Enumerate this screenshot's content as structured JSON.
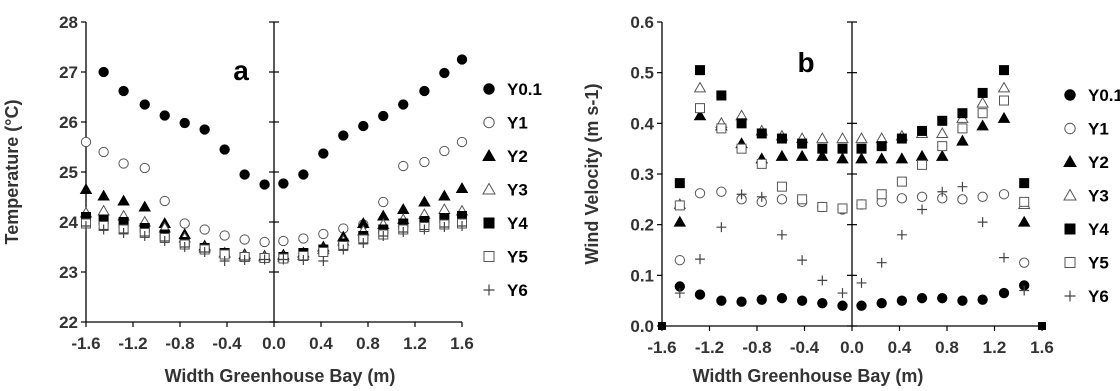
{
  "chart_data": [
    {
      "type": "scatter",
      "panel_label": "a",
      "xlabel": "Width Greenhouse Bay (m)",
      "ylabel": "Temperature (°C)",
      "xlim": [
        -1.6,
        1.6
      ],
      "ylim": [
        22,
        28
      ],
      "xticks": [
        "-1.6",
        "-1.2",
        "-0.8",
        "-0.4",
        "0.0",
        "0.4",
        "0.8",
        "1.2",
        "1.6"
      ],
      "yticks": [
        "22",
        "23",
        "24",
        "25",
        "26",
        "27",
        "28"
      ],
      "x": [
        -1.6,
        -1.45,
        -1.28,
        -1.1,
        -0.93,
        -0.76,
        -0.59,
        -0.42,
        -0.25,
        -0.08,
        0.08,
        0.25,
        0.42,
        0.59,
        0.76,
        0.93,
        1.1,
        1.28,
        1.45,
        1.6
      ],
      "series": [
        {
          "name": "Y0.1",
          "marker": "filled-circle",
          "values": [
            null,
            27.0,
            26.62,
            26.35,
            26.13,
            25.98,
            25.85,
            25.45,
            24.95,
            24.75,
            24.77,
            24.95,
            25.37,
            25.73,
            25.92,
            26.12,
            26.35,
            26.62,
            26.98,
            27.25
          ]
        },
        {
          "name": "Y1",
          "marker": "open-circle",
          "values": [
            25.6,
            25.4,
            25.17,
            25.08,
            24.42,
            23.97,
            23.85,
            23.73,
            23.65,
            23.6,
            23.62,
            23.67,
            23.76,
            23.87,
            23.95,
            24.4,
            25.12,
            25.2,
            25.42,
            25.6
          ]
        },
        {
          "name": "Y2",
          "marker": "filled-triangle",
          "values": [
            24.65,
            24.52,
            24.42,
            24.3,
            23.97,
            23.75,
            23.52,
            23.38,
            23.35,
            23.32,
            23.34,
            23.38,
            23.5,
            23.7,
            23.97,
            24.12,
            24.25,
            24.4,
            24.52,
            24.67
          ]
        },
        {
          "name": "Y3",
          "marker": "open-triangle",
          "values": [
            24.18,
            24.22,
            24.12,
            24.0,
            23.88,
            23.68,
            23.48,
            23.38,
            23.32,
            23.3,
            23.3,
            23.33,
            23.45,
            23.62,
            23.82,
            23.95,
            24.05,
            24.15,
            24.25,
            24.22
          ]
        },
        {
          "name": "Y4",
          "marker": "filled-square",
          "values": [
            24.1,
            24.05,
            24.0,
            23.88,
            23.75,
            23.6,
            23.48,
            23.38,
            23.3,
            23.28,
            23.3,
            23.38,
            23.45,
            23.57,
            23.72,
            23.85,
            23.97,
            24.02,
            24.08,
            24.12
          ]
        },
        {
          "name": "Y5",
          "marker": "open-square",
          "values": [
            23.97,
            23.92,
            23.85,
            23.78,
            23.68,
            23.55,
            23.45,
            23.35,
            23.3,
            23.28,
            23.27,
            23.32,
            23.4,
            23.52,
            23.65,
            23.75,
            23.85,
            23.9,
            23.95,
            23.97
          ]
        },
        {
          "name": "Y6",
          "marker": "plus",
          "values": [
            23.92,
            23.85,
            23.78,
            23.72,
            23.62,
            23.5,
            23.4,
            23.22,
            23.24,
            23.25,
            23.25,
            23.24,
            23.22,
            23.45,
            23.58,
            23.72,
            23.8,
            23.85,
            23.9,
            23.92
          ]
        }
      ],
      "legend": [
        "Y0.1",
        "Y1",
        "Y2",
        "Y3",
        "Y4",
        "Y5",
        "Y6"
      ],
      "legend_position": "right",
      "grid": false
    },
    {
      "type": "scatter",
      "panel_label": "b",
      "xlabel": "Width Greenhouse Bay (m)",
      "ylabel": "Wind Velocity (m s-1)",
      "xlim": [
        -1.6,
        1.6
      ],
      "ylim": [
        0.0,
        0.6
      ],
      "xticks": [
        "-1.6",
        "-1.2",
        "-0.8",
        "-0.4",
        "0.0",
        "0.4",
        "0.8",
        "1.2",
        "1.6"
      ],
      "yticks": [
        "0.0",
        "0.1",
        "0.2",
        "0.3",
        "0.4",
        "0.5",
        "0.6"
      ],
      "x": [
        -1.45,
        -1.28,
        -1.1,
        -0.93,
        -0.76,
        -0.59,
        -0.42,
        -0.25,
        -0.08,
        0.08,
        0.25,
        0.42,
        0.59,
        0.76,
        0.93,
        1.1,
        1.28,
        1.45
      ],
      "series": [
        {
          "name": "Y0.1",
          "marker": "filled-circle",
          "values": [
            0.078,
            0.062,
            0.05,
            0.048,
            0.052,
            0.055,
            0.05,
            0.045,
            0.04,
            0.04,
            0.045,
            0.05,
            0.055,
            0.055,
            0.05,
            0.052,
            0.065,
            0.08
          ]
        },
        {
          "name": "Y1",
          "marker": "open-circle",
          "values": [
            0.13,
            0.262,
            0.265,
            0.25,
            0.245,
            0.25,
            0.245,
            0.235,
            0.23,
            0.24,
            0.245,
            0.252,
            0.255,
            0.252,
            0.25,
            0.255,
            0.26,
            0.125
          ]
        },
        {
          "name": "Y2",
          "marker": "filled-triangle",
          "values": [
            0.205,
            0.415,
            0.395,
            0.36,
            0.33,
            0.335,
            0.335,
            0.335,
            0.33,
            0.33,
            0.33,
            0.33,
            0.335,
            0.335,
            0.365,
            0.395,
            0.41,
            0.205
          ]
        },
        {
          "name": "Y3",
          "marker": "open-triangle",
          "values": [
            0.24,
            0.47,
            0.4,
            0.415,
            0.385,
            0.375,
            0.37,
            0.37,
            0.37,
            0.37,
            0.37,
            0.375,
            0.38,
            0.38,
            0.41,
            0.44,
            0.47,
            0.24
          ]
        },
        {
          "name": "Y4",
          "marker": "filled-square",
          "values": [
            0.282,
            0.505,
            0.455,
            0.4,
            0.38,
            0.37,
            0.36,
            0.35,
            0.35,
            0.35,
            0.355,
            0.37,
            0.385,
            0.405,
            0.42,
            0.46,
            0.505,
            0.282
          ]
        },
        {
          "name": "Y5",
          "marker": "open-square",
          "values": [
            0.238,
            0.43,
            0.39,
            0.35,
            0.32,
            0.275,
            0.25,
            0.235,
            0.232,
            0.24,
            0.26,
            0.285,
            0.318,
            0.355,
            0.39,
            0.42,
            0.445,
            0.245
          ]
        },
        {
          "name": "Y6",
          "marker": "plus",
          "values": [
            0.065,
            0.132,
            0.195,
            0.26,
            0.255,
            0.18,
            0.13,
            0.09,
            0.065,
            0.085,
            0.125,
            0.18,
            0.23,
            0.265,
            0.275,
            0.205,
            0.135,
            0.07
          ]
        }
      ],
      "legend": [
        "Y0.1",
        "Y1",
        "Y2",
        "Y3",
        "Y4",
        "Y5",
        "Y6"
      ],
      "legend_position": "right",
      "grid": false
    }
  ]
}
